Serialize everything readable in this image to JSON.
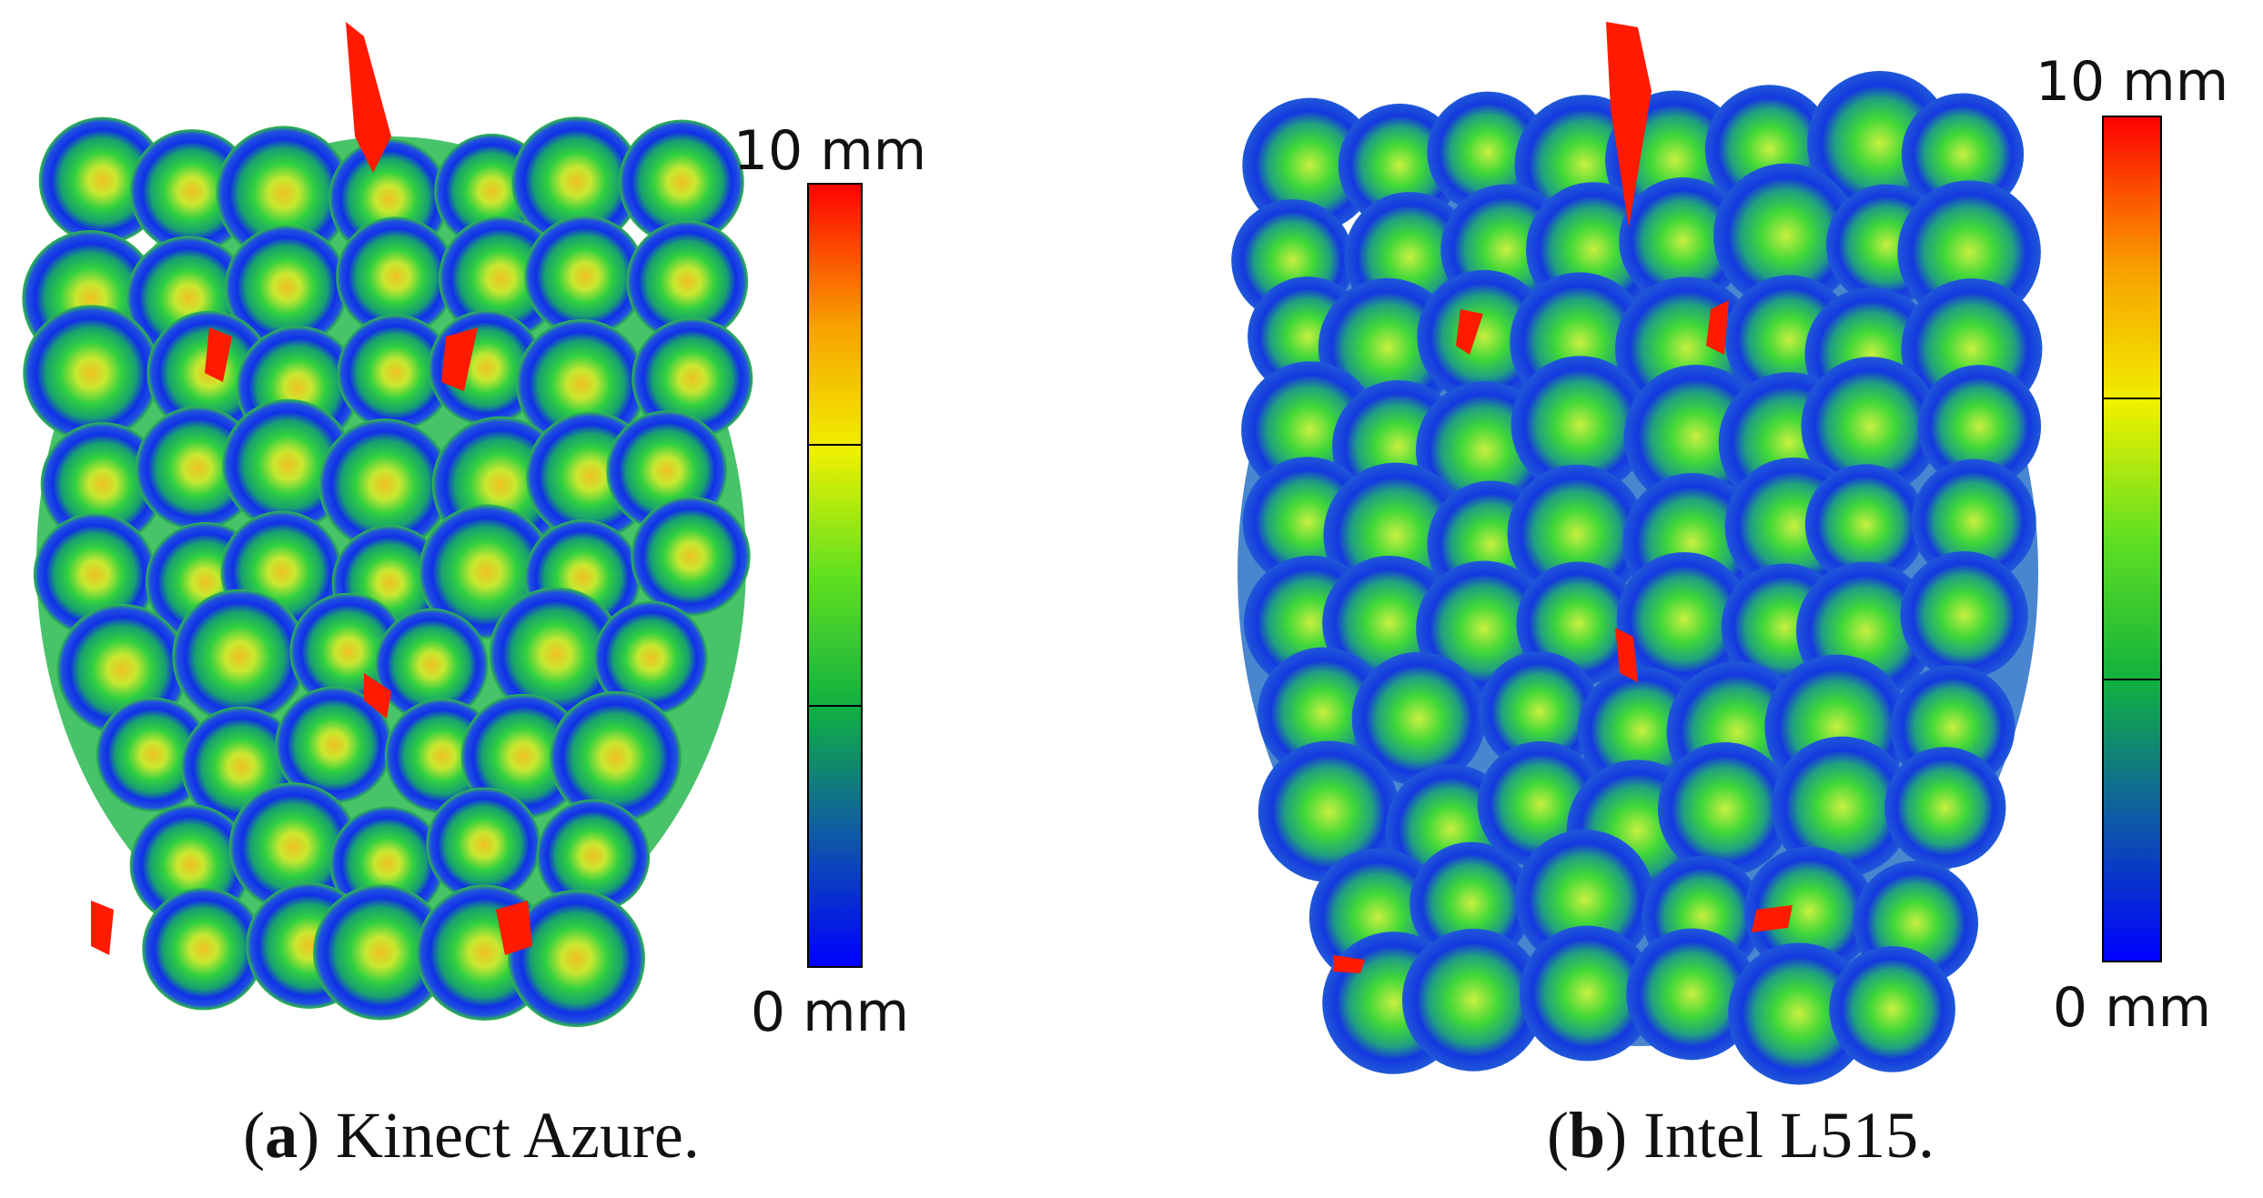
{
  "panels": [
    {
      "colorbar": {
        "max_label": "10 mm",
        "min_label": "0 mm"
      },
      "caption": [
        "(",
        "a",
        ") Kinect Azure."
      ]
    },
    {
      "colorbar": {
        "max_label": "10 mm",
        "min_label": "0 mm"
      },
      "caption": [
        "(",
        "b",
        ") Intel L515."
      ]
    }
  ]
}
